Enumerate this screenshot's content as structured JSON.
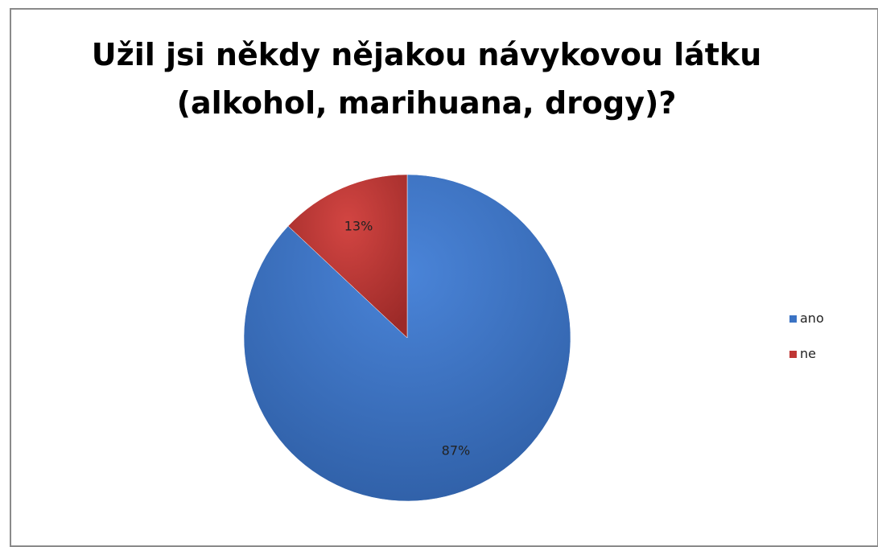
{
  "chart_data": {
    "type": "pie",
    "title": "Užil jsi někdy nějakou návykovou látku (alkohol, marihuana, drogy)?",
    "title_lines": [
      "Užil jsi někdy nějakou návykovou látku",
      "(alkohol, marihuana, drogy)?"
    ],
    "categories": [
      "ano",
      "ne"
    ],
    "values": [
      87,
      13
    ],
    "data_labels": [
      "87%",
      "13%"
    ],
    "colors": [
      "#3b73c4",
      "#bf3634"
    ],
    "legend_position": "right",
    "legend": [
      "ano",
      "ne"
    ]
  }
}
